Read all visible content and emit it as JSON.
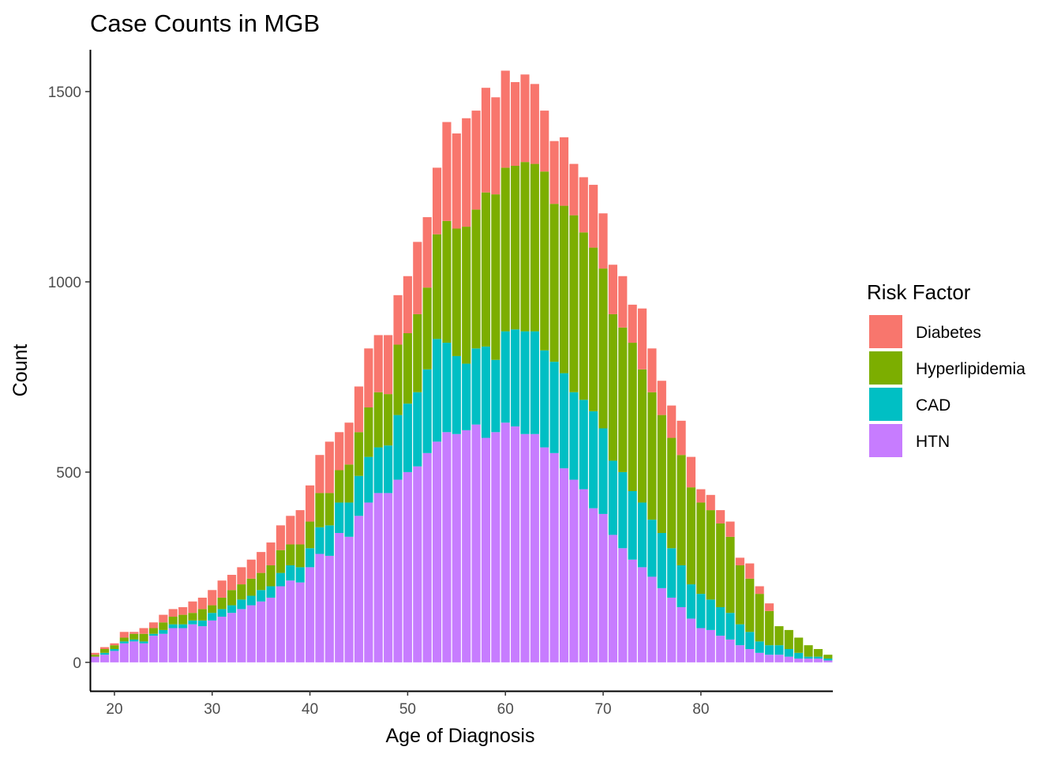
{
  "chart_data": {
    "type": "bar",
    "stacked": true,
    "title": "Case Counts in MGB",
    "xlabel": "Age of Diagnosis",
    "ylabel": "Count",
    "xlim": [
      17.5,
      93.5
    ],
    "ylim": [
      -75,
      1610
    ],
    "xticks": [
      20,
      30,
      40,
      50,
      60,
      70,
      80
    ],
    "yticks": [
      0,
      500,
      1000,
      1500
    ],
    "legend": {
      "title": "Risk Factor",
      "position": "right"
    },
    "ages": [
      18,
      19,
      20,
      21,
      22,
      23,
      24,
      25,
      26,
      27,
      28,
      29,
      30,
      31,
      32,
      33,
      34,
      35,
      36,
      37,
      38,
      39,
      40,
      41,
      42,
      43,
      44,
      45,
      46,
      47,
      48,
      49,
      50,
      51,
      52,
      53,
      54,
      55,
      56,
      57,
      58,
      59,
      60,
      61,
      62,
      63,
      64,
      65,
      66,
      67,
      68,
      69,
      70,
      71,
      72,
      73,
      74,
      75,
      76,
      77,
      78,
      79,
      80,
      81,
      82,
      83,
      84,
      85,
      86,
      87,
      88,
      89,
      90,
      91,
      92,
      93
    ],
    "stack_order_bottom_to_top": [
      "HTN",
      "CAD",
      "Hyperlipidemia",
      "Diabetes"
    ],
    "series": [
      {
        "name": "HTN",
        "color": "#C77CFF",
        "values": [
          15,
          20,
          30,
          50,
          55,
          50,
          70,
          75,
          90,
          90,
          100,
          95,
          110,
          120,
          130,
          140,
          150,
          160,
          170,
          200,
          215,
          210,
          250,
          285,
          280,
          340,
          330,
          385,
          420,
          445,
          445,
          480,
          500,
          515,
          550,
          580,
          605,
          600,
          610,
          625,
          590,
          605,
          630,
          620,
          600,
          600,
          565,
          550,
          510,
          480,
          455,
          405,
          390,
          335,
          300,
          270,
          250,
          225,
          195,
          170,
          145,
          115,
          90,
          85,
          70,
          60,
          45,
          35,
          25,
          20,
          20,
          15,
          10,
          10,
          10,
          5
        ]
      },
      {
        "name": "CAD",
        "color": "#00BFC4",
        "values": [
          0,
          5,
          5,
          5,
          5,
          5,
          5,
          10,
          10,
          10,
          10,
          15,
          20,
          20,
          20,
          25,
          25,
          30,
          30,
          35,
          40,
          40,
          50,
          70,
          80,
          80,
          90,
          105,
          120,
          120,
          125,
          170,
          180,
          195,
          220,
          270,
          235,
          205,
          175,
          200,
          240,
          190,
          240,
          255,
          270,
          270,
          255,
          240,
          250,
          230,
          235,
          255,
          225,
          195,
          200,
          180,
          170,
          150,
          145,
          130,
          110,
          90,
          90,
          80,
          75,
          70,
          55,
          45,
          30,
          25,
          25,
          20,
          15,
          5,
          5,
          5
        ]
      },
      {
        "name": "Hyperlipidemia",
        "color": "#7CAE00",
        "values": [
          5,
          10,
          10,
          10,
          15,
          20,
          15,
          20,
          20,
          25,
          20,
          30,
          20,
          30,
          40,
          40,
          45,
          45,
          55,
          60,
          55,
          60,
          70,
          90,
          85,
          85,
          100,
          115,
          130,
          145,
          135,
          185,
          185,
          205,
          215,
          275,
          320,
          335,
          360,
          365,
          405,
          435,
          430,
          430,
          445,
          440,
          470,
          415,
          440,
          465,
          440,
          430,
          420,
          385,
          380,
          390,
          350,
          335,
          310,
          290,
          290,
          255,
          240,
          235,
          220,
          200,
          155,
          140,
          125,
          90,
          50,
          50,
          40,
          30,
          20,
          10
        ]
      },
      {
        "name": "Diabetes",
        "color": "#F8766D",
        "values": [
          5,
          5,
          5,
          15,
          5,
          15,
          15,
          20,
          20,
          20,
          30,
          30,
          40,
          45,
          40,
          45,
          50,
          55,
          60,
          65,
          75,
          90,
          95,
          100,
          135,
          100,
          110,
          120,
          155,
          150,
          155,
          130,
          150,
          190,
          185,
          175,
          260,
          250,
          285,
          260,
          275,
          255,
          255,
          220,
          230,
          210,
          160,
          165,
          180,
          135,
          145,
          165,
          145,
          130,
          135,
          100,
          160,
          115,
          90,
          85,
          90,
          80,
          35,
          40,
          35,
          40,
          20,
          40,
          20,
          20,
          0,
          0,
          0,
          0,
          0,
          0
        ]
      }
    ]
  }
}
